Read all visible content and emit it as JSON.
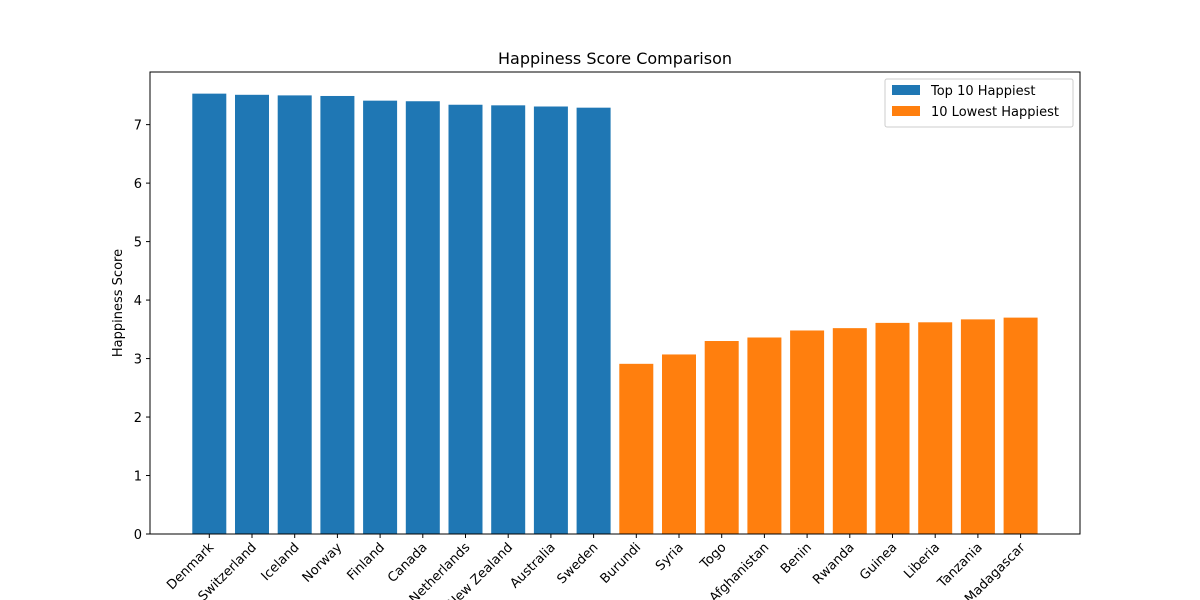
{
  "chart_data": {
    "type": "bar",
    "title": "Happiness Score Comparison",
    "xlabel": "",
    "ylabel": "Happiness Score",
    "ylim": [
      0,
      7.9
    ],
    "yticks": [
      0,
      1,
      2,
      3,
      4,
      5,
      6,
      7
    ],
    "grid": false,
    "legend_position": "top-right",
    "series": [
      {
        "name": "Top 10 Happiest",
        "color": "#1f77b4",
        "categories": [
          "Denmark",
          "Switzerland",
          "Iceland",
          "Norway",
          "Finland",
          "Canada",
          "Netherlands",
          "New Zealand",
          "Australia",
          "Sweden"
        ],
        "values": [
          7.53,
          7.51,
          7.5,
          7.49,
          7.41,
          7.4,
          7.34,
          7.33,
          7.31,
          7.29
        ]
      },
      {
        "name": "10 Lowest Happiest",
        "color": "#ff7f0e",
        "categories": [
          "Burundi",
          "Syria",
          "Togo",
          "Afghanistan",
          "Benin",
          "Rwanda",
          "Guinea",
          "Liberia",
          "Tanzania",
          "Madagascar"
        ],
        "values": [
          2.91,
          3.07,
          3.3,
          3.36,
          3.48,
          3.52,
          3.61,
          3.62,
          3.67,
          3.7
        ]
      }
    ]
  }
}
